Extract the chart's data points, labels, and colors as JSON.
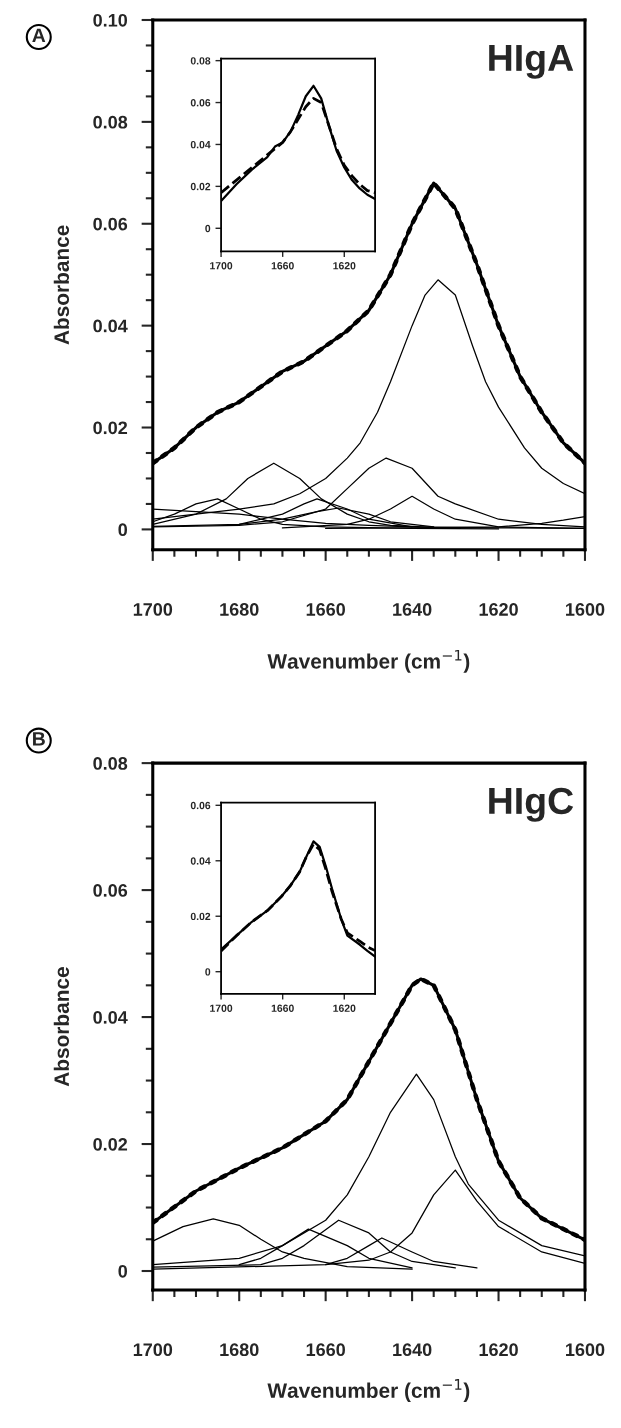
{
  "chart_data": [
    {
      "type": "line",
      "title": "A",
      "xlabel": "Wavenumber (cm$^{−1}$)",
      "ylabel": "Absorbance",
      "annotations": [
        "HIgA"
      ],
      "xlim": [
        1700,
        1600
      ],
      "ylim": [
        -0.004,
        0.1
      ],
      "xticks": [
        1700,
        {
          "value": 1695,
          "label": null
        },
        {
          "value": 1690,
          "label": null
        },
        {
          "value": 1685,
          "label": null
        },
        1680,
        {
          "value": 1675,
          "label": null
        },
        {
          "value": 1670,
          "label": null
        },
        {
          "value": 1665,
          "label": null
        },
        1660,
        {
          "value": 1655,
          "label": null
        },
        {
          "value": 1650,
          "label": null
        },
        {
          "value": 1645,
          "label": null
        },
        1640,
        {
          "value": 1635,
          "label": null
        },
        {
          "value": 1630,
          "label": null
        },
        {
          "value": 1625,
          "label": null
        },
        1620,
        {
          "value": 1615,
          "label": null
        },
        {
          "value": 1610,
          "label": null
        },
        {
          "value": 1605,
          "label": null
        },
        1600
      ],
      "yticks": [
        0,
        {
          "value": 0.005,
          "label": null
        },
        {
          "value": 0.01,
          "label": null
        },
        {
          "value": 0.015,
          "label": null
        },
        0.02,
        {
          "value": 0.025,
          "label": null
        },
        {
          "value": 0.03,
          "label": null
        },
        {
          "value": 0.035,
          "label": null
        },
        0.04,
        {
          "value": 0.045,
          "label": null
        },
        {
          "value": 0.05,
          "label": null
        },
        {
          "value": 0.055,
          "label": null
        },
        0.06,
        {
          "value": 0.065,
          "label": null
        },
        {
          "value": 0.07,
          "label": null
        },
        {
          "value": 0.075,
          "label": null
        },
        0.08,
        {
          "value": 0.085,
          "label": null
        },
        {
          "value": 0.09,
          "label": null
        },
        {
          "value": 0.095,
          "label": null
        },
        {
          "value": 0.1,
          "label": "0.10"
        }
      ],
      "series": [
        {
          "color": "#000000",
          "line_style": "solid",
          "x": [
            1700,
            1695,
            1690,
            1685,
            1680,
            1675,
            1670,
            1665,
            1660,
            1655,
            1650,
            1645,
            1640,
            1635,
            1630,
            1625,
            1620,
            1615,
            1610,
            1605,
            1600
          ],
          "values": [
            0.013,
            0.016,
            0.02,
            0.023,
            0.025,
            0.028,
            0.031,
            0.033,
            0.036,
            0.039,
            0.043,
            0.05,
            0.06,
            0.068,
            0.063,
            0.052,
            0.04,
            0.03,
            0.023,
            0.017,
            0.013
          ]
        },
        {
          "color": "#000000",
          "line_style": "dotted",
          "x": [
            1700,
            1695,
            1690,
            1685,
            1680,
            1675,
            1670,
            1665,
            1660,
            1655,
            1650,
            1645,
            1640,
            1635,
            1630,
            1625,
            1620,
            1615,
            1610,
            1605,
            1600
          ],
          "values": [
            0.013,
            0.016,
            0.02,
            0.023,
            0.025,
            0.028,
            0.031,
            0.033,
            0.036,
            0.039,
            0.043,
            0.05,
            0.06,
            0.068,
            0.063,
            0.052,
            0.04,
            0.03,
            0.023,
            0.017,
            0.013
          ]
        },
        {
          "color": "#000000",
          "line_style": "solid",
          "x": [
            1700,
            1680,
            1672,
            1666,
            1660,
            1655,
            1652,
            1648,
            1645,
            1640,
            1637,
            1634,
            1630,
            1626,
            1623,
            1620,
            1614,
            1610,
            1605,
            1600
          ],
          "values": [
            0.002,
            0.004,
            0.005,
            0.007,
            0.01,
            0.014,
            0.017,
            0.023,
            0.029,
            0.04,
            0.046,
            0.049,
            0.046,
            0.036,
            0.029,
            0.024,
            0.016,
            0.012,
            0.009,
            0.007
          ]
        },
        {
          "color": "#000000",
          "line_style": "solid",
          "x": [
            1700,
            1690,
            1683,
            1678,
            1672,
            1666,
            1661,
            1655,
            1650,
            1645,
            1635
          ],
          "values": [
            0.001,
            0.003,
            0.006,
            0.01,
            0.013,
            0.01,
            0.006,
            0.003,
            0.0015,
            0.0008,
            0.0004
          ]
        },
        {
          "color": "#000000",
          "line_style": "solid",
          "x": [
            1700,
            1680,
            1670,
            1660,
            1655,
            1650,
            1646,
            1640,
            1634,
            1630,
            1620,
            1610,
            1600
          ],
          "values": [
            0.0005,
            0.0008,
            0.0015,
            0.004,
            0.008,
            0.012,
            0.014,
            0.012,
            0.0065,
            0.005,
            0.002,
            0.001,
            0.0005
          ]
        },
        {
          "color": "#000000",
          "line_style": "solid",
          "x": [
            1670,
            1655,
            1650,
            1645,
            1640,
            1635,
            1630,
            1620,
            1600
          ],
          "values": [
            0.0003,
            0.001,
            0.002,
            0.004,
            0.0065,
            0.004,
            0.002,
            0.0005,
            0.0002
          ]
        },
        {
          "color": "#000000",
          "line_style": "solid",
          "x": [
            1700,
            1695,
            1690,
            1685,
            1680,
            1675,
            1670,
            1660,
            1640,
            1620
          ],
          "values": [
            0.0015,
            0.003,
            0.005,
            0.006,
            0.004,
            0.002,
            0.001,
            0.0005,
            0.0002,
            0.0001
          ]
        },
        {
          "color": "#000000",
          "line_style": "solid",
          "x": [
            1680,
            1670,
            1665,
            1662,
            1655,
            1650,
            1640
          ],
          "values": [
            0.001,
            0.003,
            0.005,
            0.006,
            0.004,
            0.002,
            0.0005
          ]
        },
        {
          "color": "#000000",
          "line_style": "solid",
          "x": [
            1700,
            1680,
            1670,
            1662,
            1657,
            1650,
            1645,
            1635
          ],
          "values": [
            0.0006,
            0.001,
            0.002,
            0.0035,
            0.0042,
            0.003,
            0.0015,
            0.0005
          ]
        },
        {
          "color": "#000000",
          "line_style": "solid",
          "x": [
            1700,
            1690,
            1680,
            1670,
            1660,
            1650,
            1640,
            1620,
            1600
          ],
          "values": [
            0.004,
            0.0035,
            0.003,
            0.002,
            0.0012,
            0.0008,
            0.0005,
            0.0003,
            0.0002
          ]
        },
        {
          "color": "#000000",
          "line_style": "solid",
          "x": [
            1660,
            1640,
            1630,
            1620,
            1610,
            1605,
            1600
          ],
          "values": [
            0.0002,
            0.0003,
            0.0004,
            0.0005,
            0.0012,
            0.0018,
            0.0025
          ]
        }
      ]
    },
    {
      "type": "line",
      "xlim": [
        1700,
        1600
      ],
      "ylim": [
        -0.011,
        0.081
      ],
      "xticks": [
        1700,
        1660,
        1620
      ],
      "yticks": [
        0,
        0.02,
        0.04,
        0.06,
        0.08
      ],
      "series": [
        {
          "color": "#000000",
          "line_style": "solid",
          "x": [
            1700,
            1690,
            1680,
            1670,
            1665,
            1660,
            1655,
            1650,
            1645,
            1640,
            1635,
            1630,
            1625,
            1620,
            1615,
            1610,
            1605,
            1600
          ],
          "values": [
            0.013,
            0.021,
            0.028,
            0.034,
            0.039,
            0.041,
            0.046,
            0.054,
            0.063,
            0.068,
            0.062,
            0.049,
            0.037,
            0.029,
            0.023,
            0.019,
            0.016,
            0.014
          ]
        },
        {
          "color": "#000000",
          "line_style": "dashed",
          "x": [
            1700,
            1690,
            1680,
            1670,
            1665,
            1660,
            1655,
            1650,
            1645,
            1640,
            1635,
            1630,
            1625,
            1620,
            1615,
            1610,
            1605,
            1600
          ],
          "values": [
            0.017,
            0.023,
            0.029,
            0.035,
            0.038,
            0.041,
            0.046,
            0.052,
            0.058,
            0.062,
            0.06,
            0.049,
            0.038,
            0.03,
            0.025,
            0.021,
            0.018,
            0.017
          ]
        }
      ]
    },
    {
      "type": "line",
      "title": "B",
      "xlabel": "Wavenumber (cm$^{−1}$)",
      "ylabel": "Absorbance",
      "annotations": [
        "HIgC"
      ],
      "xlim": [
        1700,
        1600
      ],
      "ylim": [
        -0.003,
        0.08
      ],
      "xticks": [
        1700,
        {
          "value": 1695,
          "label": null
        },
        {
          "value": 1690,
          "label": null
        },
        {
          "value": 1685,
          "label": null
        },
        1680,
        {
          "value": 1675,
          "label": null
        },
        {
          "value": 1670,
          "label": null
        },
        {
          "value": 1665,
          "label": null
        },
        1660,
        {
          "value": 1655,
          "label": null
        },
        {
          "value": 1650,
          "label": null
        },
        {
          "value": 1645,
          "label": null
        },
        1640,
        {
          "value": 1635,
          "label": null
        },
        {
          "value": 1630,
          "label": null
        },
        {
          "value": 1625,
          "label": null
        },
        1620,
        {
          "value": 1615,
          "label": null
        },
        {
          "value": 1610,
          "label": null
        },
        {
          "value": 1605,
          "label": null
        },
        1600
      ],
      "yticks": [
        0,
        {
          "value": 0.005,
          "label": null
        },
        {
          "value": 0.01,
          "label": null
        },
        {
          "value": 0.015,
          "label": null
        },
        0.02,
        {
          "value": 0.025,
          "label": null
        },
        {
          "value": 0.03,
          "label": null
        },
        {
          "value": 0.035,
          "label": null
        },
        0.04,
        {
          "value": 0.045,
          "label": null
        },
        {
          "value": 0.05,
          "label": null
        },
        {
          "value": 0.055,
          "label": null
        },
        0.06,
        {
          "value": 0.065,
          "label": null
        },
        {
          "value": 0.07,
          "label": null
        },
        {
          "value": 0.075,
          "label": null
        },
        0.08
      ],
      "series": [
        {
          "color": "#000000",
          "line_style": "solid",
          "x": [
            1700,
            1690,
            1680,
            1670,
            1660,
            1655,
            1650,
            1645,
            1640,
            1638,
            1635,
            1630,
            1625,
            1620,
            1615,
            1610,
            1605,
            1600
          ],
          "values": [
            0.0076,
            0.0126,
            0.0162,
            0.0194,
            0.0236,
            0.027,
            0.033,
            0.039,
            0.045,
            0.046,
            0.045,
            0.038,
            0.027,
            0.0173,
            0.0115,
            0.0083,
            0.0066,
            0.0049
          ]
        },
        {
          "color": "#000000",
          "line_style": "dotted",
          "x": [
            1700,
            1690,
            1680,
            1670,
            1660,
            1655,
            1650,
            1645,
            1640,
            1638,
            1635,
            1630,
            1625,
            1620,
            1615,
            1610,
            1605,
            1600
          ],
          "values": [
            0.0076,
            0.0126,
            0.0162,
            0.0194,
            0.0236,
            0.027,
            0.033,
            0.039,
            0.045,
            0.046,
            0.045,
            0.038,
            0.027,
            0.0173,
            0.0115,
            0.0083,
            0.0066,
            0.0049
          ]
        },
        {
          "color": "#000000",
          "line_style": "solid",
          "x": [
            1700,
            1680,
            1670,
            1660,
            1655,
            1650,
            1645,
            1639,
            1635,
            1630,
            1627,
            1620,
            1610,
            1600
          ],
          "values": [
            0.001,
            0.002,
            0.004,
            0.008,
            0.012,
            0.018,
            0.025,
            0.031,
            0.027,
            0.018,
            0.0137,
            0.008,
            0.004,
            0.0024
          ]
        },
        {
          "color": "#000000",
          "line_style": "solid",
          "x": [
            1700,
            1660,
            1650,
            1645,
            1640,
            1635,
            1630,
            1625,
            1620,
            1610,
            1600
          ],
          "values": [
            0.0003,
            0.001,
            0.0017,
            0.003,
            0.006,
            0.012,
            0.0159,
            0.011,
            0.007,
            0.003,
            0.0012
          ]
        },
        {
          "color": "#000000",
          "line_style": "solid",
          "x": [
            1700,
            1693,
            1686,
            1680,
            1675,
            1670,
            1665,
            1655,
            1640
          ],
          "values": [
            0.0047,
            0.007,
            0.0082,
            0.0072,
            0.005,
            0.003,
            0.002,
            0.0007,
            0.0003
          ]
        },
        {
          "color": "#000000",
          "line_style": "solid",
          "x": [
            1680,
            1675,
            1670,
            1664,
            1655,
            1650,
            1640
          ],
          "values": [
            0.001,
            0.002,
            0.004,
            0.0066,
            0.004,
            0.002,
            0.0005
          ]
        },
        {
          "color": "#000000",
          "line_style": "solid",
          "x": [
            1700,
            1675,
            1670,
            1665,
            1657,
            1650,
            1645,
            1640,
            1630
          ],
          "values": [
            0.0006,
            0.001,
            0.002,
            0.004,
            0.008,
            0.006,
            0.003,
            0.0015,
            0.0005
          ]
        },
        {
          "color": "#000000",
          "line_style": "solid",
          "x": [
            1660,
            1655,
            1650,
            1647,
            1640,
            1635,
            1625
          ],
          "values": [
            0.001,
            0.002,
            0.004,
            0.0052,
            0.003,
            0.0015,
            0.0005
          ]
        }
      ]
    },
    {
      "type": "line",
      "xlim": [
        1700,
        1600
      ],
      "ylim": [
        -0.008,
        0.061
      ],
      "xticks": [
        1700,
        1660,
        1620
      ],
      "yticks": [
        0,
        0.02,
        0.04,
        0.06
      ],
      "series": [
        {
          "color": "#000000",
          "line_style": "solid",
          "x": [
            1700,
            1690,
            1680,
            1670,
            1661,
            1655,
            1649,
            1645,
            1640,
            1636,
            1632,
            1628,
            1622,
            1618,
            1610,
            1605,
            1600
          ],
          "values": [
            0.008,
            0.013,
            0.018,
            0.022,
            0.027,
            0.031,
            0.036,
            0.041,
            0.047,
            0.045,
            0.038,
            0.03,
            0.019,
            0.013,
            0.0098,
            0.0075,
            0.0054
          ]
        },
        {
          "color": "#000000",
          "line_style": "dashed",
          "x": [
            1700,
            1690,
            1680,
            1670,
            1661,
            1655,
            1649,
            1645,
            1640,
            1636,
            1632,
            1628,
            1622,
            1618,
            1610,
            1605,
            1600
          ],
          "values": [
            0.0075,
            0.013,
            0.018,
            0.022,
            0.027,
            0.031,
            0.036,
            0.041,
            0.046,
            0.044,
            0.037,
            0.029,
            0.019,
            0.014,
            0.011,
            0.009,
            0.0076
          ]
        }
      ]
    }
  ]
}
